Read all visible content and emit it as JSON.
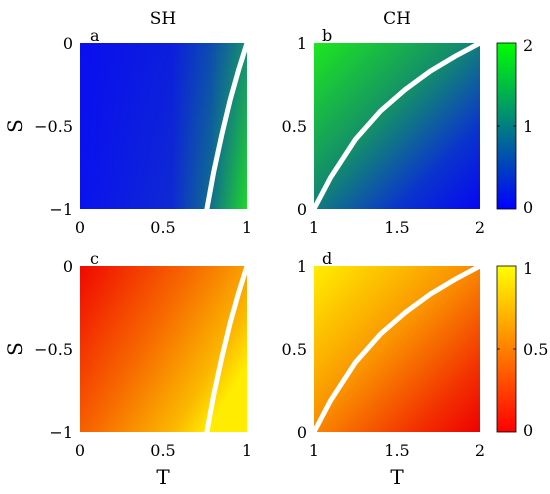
{
  "column_titles": [
    "SH",
    "CH"
  ],
  "chart_data": [
    {
      "type": "heatmap",
      "panel_label": "a",
      "xlabel": "",
      "ylabel": "S",
      "xlim": [
        0,
        1
      ],
      "ylim": [
        -1,
        0
      ],
      "xticks": [
        "0",
        "0.5",
        "1"
      ],
      "yticks": [
        "0",
        "−0.5",
        "−1"
      ],
      "colormap": "blue-green",
      "color_range": [
        0,
        2
      ],
      "boundary_curve": {
        "x": [
          0.76,
          0.8,
          0.85,
          0.9,
          0.95,
          1.0
        ],
        "y": [
          -1,
          -0.78,
          -0.55,
          -0.34,
          -0.16,
          0
        ]
      }
    },
    {
      "type": "heatmap",
      "panel_label": "b",
      "xlabel": "",
      "ylabel": "",
      "xlim": [
        1,
        2
      ],
      "ylim": [
        0,
        1
      ],
      "xticks": [
        "1",
        "1.5",
        "2"
      ],
      "yticks": [
        "1",
        "0.5",
        "0"
      ],
      "colormap": "blue-green",
      "color_range": [
        0,
        2
      ],
      "colorbar_ticks": [
        "2",
        "1",
        "0"
      ],
      "boundary_curve": {
        "x": [
          1,
          1.1,
          1.25,
          1.4,
          1.55,
          1.7,
          1.85,
          2.0
        ],
        "y": [
          0,
          0.19,
          0.42,
          0.59,
          0.72,
          0.83,
          0.92,
          1.0
        ]
      }
    },
    {
      "type": "heatmap",
      "panel_label": "c",
      "xlabel": "T",
      "ylabel": "S",
      "xlim": [
        0,
        1
      ],
      "ylim": [
        -1,
        0
      ],
      "xticks": [
        "0",
        "0.5",
        "1"
      ],
      "yticks": [
        "0",
        "−0.5",
        "−1"
      ],
      "colormap": "red-yellow",
      "color_range": [
        0,
        1
      ],
      "boundary_curve": {
        "x": [
          0.76,
          0.8,
          0.85,
          0.9,
          0.95,
          1.0
        ],
        "y": [
          -1,
          -0.78,
          -0.55,
          -0.34,
          -0.16,
          0
        ]
      }
    },
    {
      "type": "heatmap",
      "panel_label": "d",
      "xlabel": "T",
      "ylabel": "",
      "xlim": [
        1,
        2
      ],
      "ylim": [
        0,
        1
      ],
      "xticks": [
        "1",
        "1.5",
        "2"
      ],
      "yticks": [
        "1",
        "0.5",
        "0"
      ],
      "colormap": "red-yellow",
      "color_range": [
        0,
        1
      ],
      "colorbar_ticks": [
        "1",
        "0.5",
        "0"
      ],
      "boundary_curve": {
        "x": [
          1,
          1.1,
          1.25,
          1.4,
          1.55,
          1.7,
          1.85,
          2.0
        ],
        "y": [
          0,
          0.19,
          0.42,
          0.59,
          0.72,
          0.83,
          0.92,
          1.0
        ]
      }
    }
  ]
}
